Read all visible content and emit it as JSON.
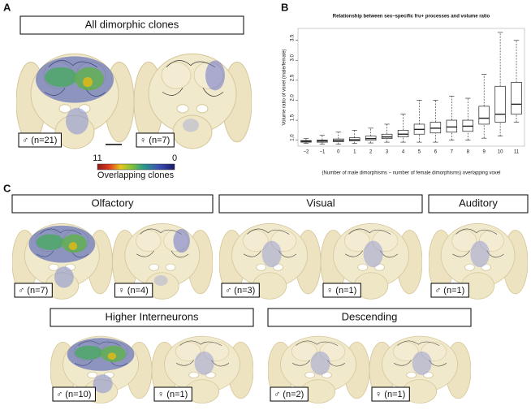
{
  "panels": {
    "a": {
      "label": "A",
      "title": "All dimorphic clones",
      "male": "♂ (n=21)",
      "female": "♀ (n=7)",
      "colorbar": {
        "max": 11,
        "min": 0,
        "label": "Overlapping clones"
      }
    },
    "b": {
      "label": "B"
    },
    "c": {
      "label": "C",
      "groups": [
        {
          "title": "Olfactory",
          "male": "♂ (n=7)",
          "female": "♀ (n=4)"
        },
        {
          "title": "Visual",
          "male": "♂ (n=3)",
          "female": "♀ (n=1)"
        },
        {
          "title": "Auditory",
          "male": "♂ (n=1)"
        },
        {
          "title": "Higher Interneurons",
          "male": "♂ (n=10)",
          "female": "♀ (n=1)"
        },
        {
          "title": "Descending",
          "male": "♂ (n=2)",
          "female": "♀ (n=1)"
        }
      ]
    }
  },
  "chart_data": {
    "type": "boxplot",
    "title": "Relationship between sex−specific fru+ processes and volume ratio",
    "x_label": "(Number of male dimorphisms − number of female dimorphisms) overlapping voxel",
    "y_label": "Volume ratio of voxel (male/female)",
    "categories": [
      "−2",
      "−1",
      "0",
      "1",
      "2",
      "3",
      "4",
      "5",
      "6",
      "7",
      "8",
      "9",
      "10",
      "11"
    ],
    "whisker_low": [
      0.92,
      0.9,
      0.9,
      0.92,
      0.93,
      0.95,
      0.95,
      0.95,
      0.95,
      1.0,
      1.0,
      1.05,
      1.1,
      1.45
    ],
    "q1": [
      0.95,
      0.95,
      0.96,
      0.98,
      1.0,
      1.04,
      1.08,
      1.15,
      1.18,
      1.2,
      1.22,
      1.4,
      1.45,
      1.65
    ],
    "median": [
      0.97,
      0.98,
      0.99,
      1.01,
      1.04,
      1.08,
      1.15,
      1.27,
      1.3,
      1.33,
      1.35,
      1.55,
      1.65,
      1.9
    ],
    "q3": [
      0.99,
      1.0,
      1.03,
      1.06,
      1.1,
      1.15,
      1.25,
      1.4,
      1.45,
      1.5,
      1.5,
      1.85,
      2.35,
      2.45
    ],
    "whisker_high": [
      1.04,
      1.12,
      1.2,
      1.25,
      1.3,
      1.4,
      1.65,
      2.0,
      2.0,
      2.1,
      2.05,
      2.65,
      3.7,
      3.5
    ],
    "color": "#222222",
    "ylim": [
      0.85,
      3.8
    ],
    "yticks": [
      {
        "value": 1,
        "label": "1.0"
      },
      1.5,
      {
        "value": 2,
        "label": "2.0"
      },
      2.5,
      {
        "value": 3,
        "label": "3.0"
      },
      3.5
    ]
  }
}
